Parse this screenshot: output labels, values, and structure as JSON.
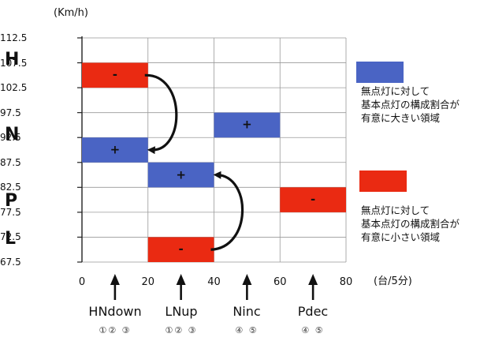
{
  "unit": "(Km/h)",
  "x_unit": "(台/5分)",
  "side_labels": [
    "H",
    "N",
    "P",
    "L"
  ],
  "colors": {
    "blue": "#4a64c4",
    "red": "#ea2a12",
    "grid": "#999999",
    "axis": "#222222"
  },
  "chart_data": {
    "type": "bar",
    "x_ticks": [
      "0",
      "20",
      "40",
      "60",
      "80"
    ],
    "y_ticks": [
      "112.5",
      "107.5",
      "102.5",
      "97.5",
      "92.5",
      "87.5",
      "82.5",
      "77.5",
      "72.5",
      "67.5"
    ],
    "xlim": [
      0,
      80
    ],
    "ylim": [
      67.5,
      112.5
    ],
    "blocks": [
      {
        "x0": 0,
        "x1": 20,
        "y0": 102.5,
        "y1": 107.5,
        "sign": "-",
        "color": "red"
      },
      {
        "x0": 0,
        "x1": 20,
        "y0": 87.5,
        "y1": 92.5,
        "sign": "+",
        "color": "blue"
      },
      {
        "x0": 20,
        "x1": 40,
        "y0": 82.5,
        "y1": 87.5,
        "sign": "+",
        "color": "blue"
      },
      {
        "x0": 20,
        "x1": 40,
        "y0": 67.5,
        "y1": 72.5,
        "sign": "-",
        "color": "red"
      },
      {
        "x0": 40,
        "x1": 60,
        "y0": 92.5,
        "y1": 97.5,
        "sign": "+",
        "color": "blue"
      },
      {
        "x0": 60,
        "x1": 80,
        "y0": 77.5,
        "y1": 82.5,
        "sign": "-",
        "color": "red"
      }
    ],
    "shifts": [
      {
        "from": [
          20,
          105
        ],
        "to": [
          20,
          90
        ]
      },
      {
        "from": [
          40,
          70
        ],
        "to": [
          40,
          85
        ]
      }
    ]
  },
  "categories": [
    {
      "x": 10,
      "name": "HNdown",
      "steps": "①②  ③"
    },
    {
      "x": 30,
      "name": "LNup",
      "steps": "①②  ③"
    },
    {
      "x": 50,
      "name": "Ninc",
      "steps": "④  ⑤"
    },
    {
      "x": 70,
      "name": "Pdec",
      "steps": "④  ⑤"
    }
  ],
  "legend": [
    {
      "color": "blue",
      "lines": [
        "無点灯に対して",
        "基本点灯の構成割合が",
        "有意に大きい領域"
      ]
    },
    {
      "color": "red",
      "lines": [
        "無点灯に対して",
        "基本点灯の構成割合が",
        "有意に小さい領域"
      ]
    }
  ]
}
